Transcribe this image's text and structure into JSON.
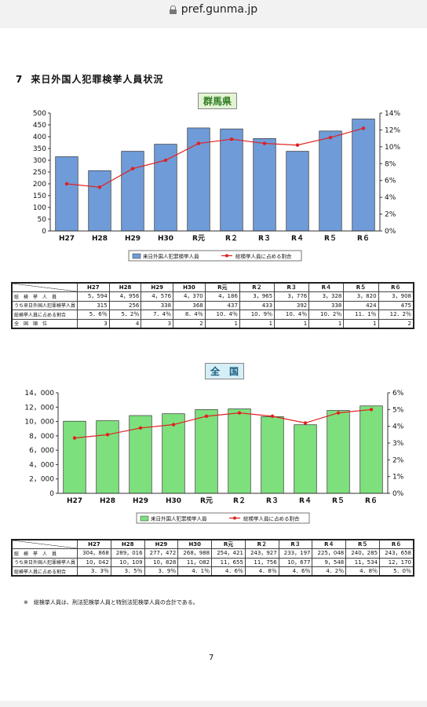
{
  "browser": {
    "url": "pref.gunma.jp"
  },
  "section": {
    "number": "7",
    "title": "来日外国人犯罪検挙人員状況"
  },
  "page_number": "7",
  "note": "※　総検挙人員は、刑法犯検挙人員と特別法犯検挙人員の合計である。",
  "chart_data": [
    {
      "type": "bar",
      "title": "群馬県",
      "categories": [
        "H27",
        "H28",
        "H29",
        "H30",
        "R元",
        "R２",
        "R３",
        "R４",
        "R５",
        "R６"
      ],
      "series": [
        {
          "name": "来日外国人犯罪検挙人員",
          "values": [
            315,
            256,
            338,
            368,
            437,
            433,
            392,
            338,
            424,
            475
          ],
          "color": "#6f9bd8"
        },
        {
          "name": "総検挙人員に占める割合",
          "type": "line",
          "axis": "right",
          "values": [
            5.6,
            5.2,
            7.4,
            8.4,
            10.4,
            10.9,
            10.4,
            10.2,
            11.1,
            12.2
          ],
          "color": "#e02020"
        }
      ],
      "ylim": [
        0,
        500
      ],
      "yticks": [
        "500",
        "450",
        "400",
        "350",
        "300",
        "250",
        "200",
        "150",
        "100",
        "50",
        "0"
      ],
      "y2lim": [
        0,
        14
      ],
      "y2ticks": [
        "14%",
        "12%",
        "10%",
        "8%",
        "6%",
        "4%",
        "2%",
        "0%"
      ],
      "legend": "bottom-center",
      "table": {
        "headers": [
          "H27",
          "H28",
          "H29",
          "H30",
          "R元",
          "R２",
          "R３",
          "R４",
          "R５",
          "R６"
        ],
        "rows": [
          {
            "label": "総　検　挙　人　員",
            "values": [
              "5，594",
              "4，956",
              "4，576",
              "4，370",
              "4，186",
              "3，965",
              "3，776",
              "3，328",
              "3，820",
              "3，908"
            ]
          },
          {
            "label": "うち来日外国人犯罪検挙人員",
            "values": [
              "315",
              "256",
              "338",
              "368",
              "437",
              "433",
              "392",
              "338",
              "424",
              "475"
            ]
          },
          {
            "label": "総検挙人員に占める割合",
            "values": [
              "5．6％",
              "5．2％",
              "7．4％",
              "8．4％",
              "10．4％",
              "10．9％",
              "10．4％",
              "10．2％",
              "11．1％",
              "12．2％"
            ]
          },
          {
            "label": "全　国　順　位",
            "values": [
              "3",
              "4",
              "3",
              "2",
              "1",
              "1",
              "1",
              "1",
              "1",
              "2"
            ]
          }
        ]
      }
    },
    {
      "type": "bar",
      "title": "全　国",
      "categories": [
        "H27",
        "H28",
        "H29",
        "H30",
        "R元",
        "R２",
        "R３",
        "R４",
        "R５",
        "R６"
      ],
      "series": [
        {
          "name": "来日外国人犯罪検挙人員",
          "values": [
            10042,
            10109,
            10828,
            11082,
            11655,
            11756,
            10677,
            9548,
            11534,
            12170
          ],
          "color": "#7de07d"
        },
        {
          "name": "総検挙人員に占める割合",
          "type": "line",
          "axis": "right",
          "values": [
            3.3,
            3.5,
            3.9,
            4.1,
            4.6,
            4.8,
            4.6,
            4.2,
            4.8,
            5.0
          ],
          "color": "#e02020"
        }
      ],
      "ylim": [
        0,
        14000
      ],
      "yticks": [
        "14，000",
        "12，000",
        "10，000",
        "8，000",
        "6，000",
        "4，000",
        "2，000",
        "0"
      ],
      "y2lim": [
        0,
        6
      ],
      "y2ticks": [
        "6%",
        "5%",
        "4%",
        "3%",
        "2%",
        "1%",
        "0%"
      ],
      "legend": "bottom-center",
      "table": {
        "headers": [
          "H27",
          "H28",
          "H29",
          "H30",
          "R元",
          "R２",
          "R３",
          "R４",
          "R５",
          "R６"
        ],
        "rows": [
          {
            "label": "総　検　挙　人　員",
            "values": [
              "304，868",
              "289，016",
              "277，472",
              "268，988",
              "254，421",
              "243，927",
              "233，197",
              "225，048",
              "240，285",
              "243，658"
            ]
          },
          {
            "label": "うち来日外国人犯罪検挙人員",
            "values": [
              "10，042",
              "10，109",
              "10，828",
              "11，082",
              "11，655",
              "11，756",
              "10，677",
              "9，548",
              "11，534",
              "12，170"
            ]
          },
          {
            "label": "総検挙人員に占める割合",
            "values": [
              "3．3％",
              "3．5％",
              "3．9％",
              "4．1％",
              "4．6％",
              "4．8％",
              "4．6％",
              "4．2％",
              "4．8％",
              "5．0％"
            ]
          }
        ]
      }
    }
  ]
}
